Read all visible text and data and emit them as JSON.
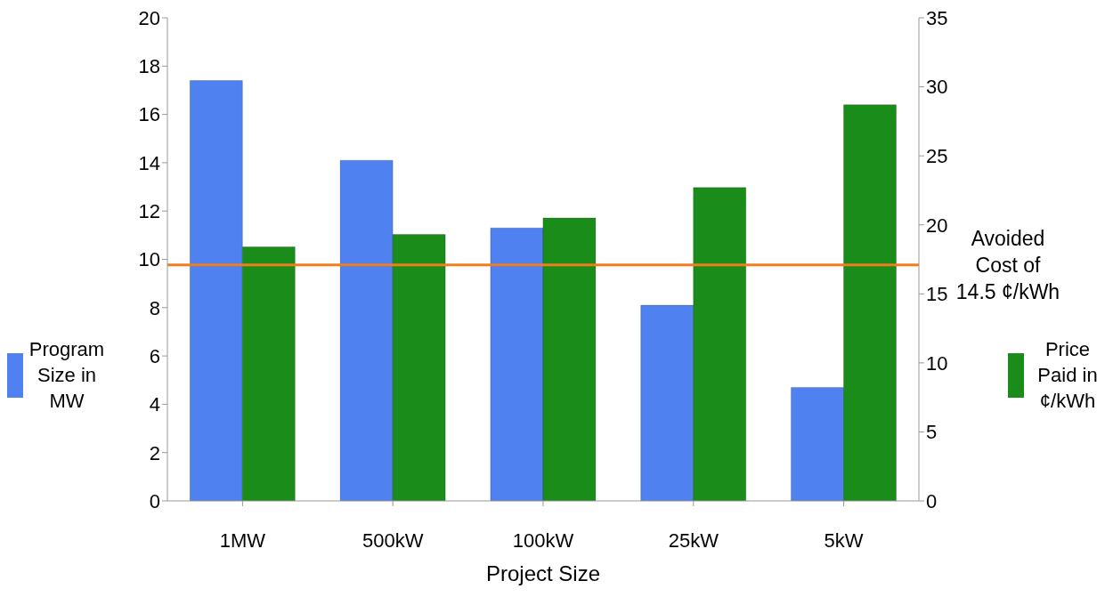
{
  "chart_data": {
    "type": "bar",
    "xlabel": "Project Size",
    "categories": [
      "1MW",
      "500kW",
      "100kW",
      "25kW",
      "5kW"
    ],
    "series": [
      {
        "name": "Program Size in MW",
        "color": "#4f81f0",
        "values": [
          17.4,
          14.1,
          11.3,
          8.1,
          4.7
        ]
      },
      {
        "name": "Price Paid in ¢/kWh",
        "color": "#1a8c1a",
        "values": [
          18.4,
          19.3,
          20.5,
          22.7,
          28.7
        ],
        "axis": "y2"
      }
    ],
    "ylim": [
      0,
      20
    ],
    "yticks": [
      0,
      2,
      4,
      6,
      8,
      10,
      12,
      14,
      16,
      18,
      20
    ],
    "y2lim": [
      0,
      35
    ],
    "y2ticks": [
      0,
      5,
      10,
      15,
      20,
      25,
      30,
      35
    ],
    "ref_lines": [
      {
        "axis": "y2",
        "value": 17.1,
        "label": "Avoided Cost of 14.5 ¢/kWh",
        "color": "#f07d1e"
      }
    ],
    "grid": false,
    "legend": "right"
  }
}
